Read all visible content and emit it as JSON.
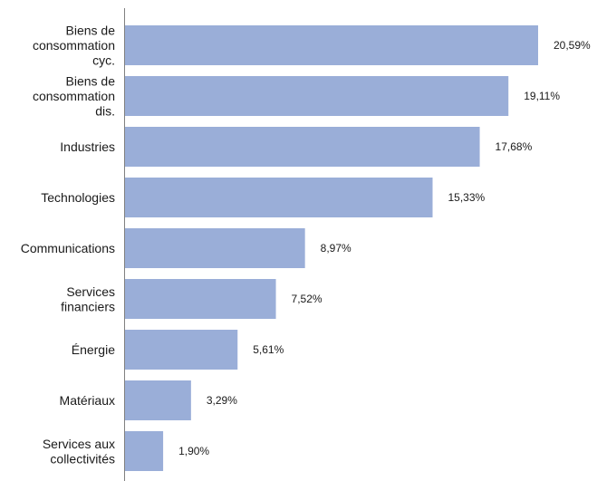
{
  "chart_data": {
    "type": "bar",
    "orientation": "horizontal",
    "categories": [
      [
        "Biens de",
        "consommation",
        "cyc."
      ],
      [
        "Biens de",
        "consommation",
        "dis."
      ],
      [
        "Industries"
      ],
      [
        "Technologies"
      ],
      [
        "Communications"
      ],
      [
        "Services",
        "financiers"
      ],
      [
        "Énergie"
      ],
      [
        "Matériaux"
      ],
      [
        "Services aux",
        "collectivités"
      ]
    ],
    "values": [
      20.59,
      19.11,
      17.68,
      15.33,
      8.97,
      7.52,
      5.61,
      3.29,
      1.9
    ],
    "data_labels": [
      "20,59%",
      "19,11%",
      "17,68%",
      "15,33%",
      "8,97%",
      "7,52%",
      "5,61%",
      "3,29%",
      "1,90%"
    ],
    "xlim": [
      0,
      21
    ],
    "grid": false,
    "legend": "none",
    "bar_color": "#9aaed8",
    "axis_color": "#808080"
  }
}
